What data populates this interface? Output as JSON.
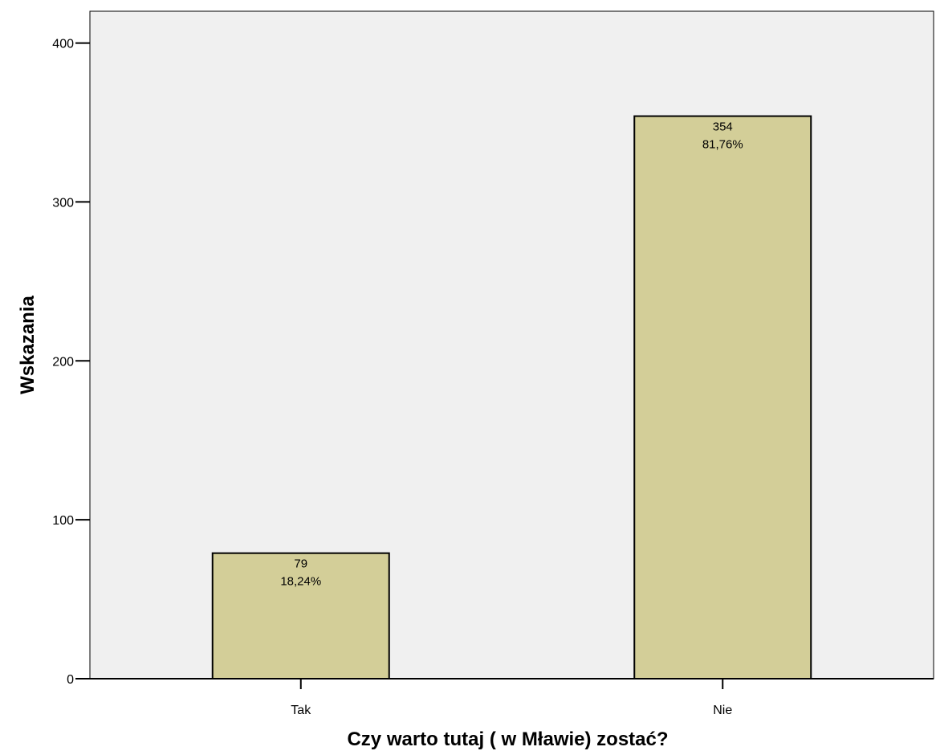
{
  "chart_data": {
    "type": "bar",
    "categories": [
      "Tak",
      "Nie"
    ],
    "values": [
      79,
      354
    ],
    "percent_labels": [
      "18,24%",
      "81,76%"
    ],
    "xlabel": "Czy warto tutaj ( w Mławie) zostać?",
    "ylabel": "Wskazania",
    "ylim": [
      0,
      420
    ],
    "yticks": [
      0,
      100,
      200,
      300,
      400
    ],
    "grid": false,
    "colors": {
      "plot_background": "#f0f0f0",
      "bar_fill": "#d3ce98",
      "bar_stroke": "#000000",
      "axis": "#000000"
    }
  }
}
